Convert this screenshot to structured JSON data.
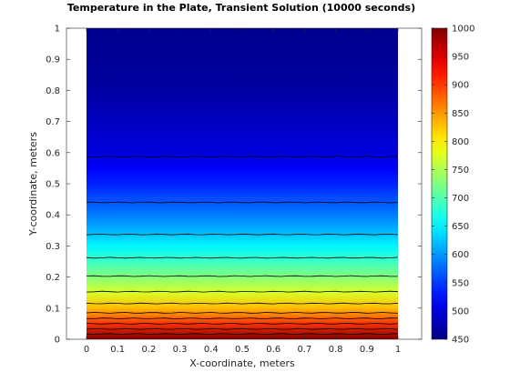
{
  "chart_data": {
    "type": "heatmap",
    "title": "Temperature in the Plate, Transient Solution (10000 seconds)",
    "xlabel": "X-coordinate, meters",
    "ylabel": "Y-coordinate, meters",
    "xlim": [
      0,
      1
    ],
    "ylim": [
      0,
      1
    ],
    "x_ticks": [
      "0",
      "0.1",
      "0.2",
      "0.3",
      "0.4",
      "0.5",
      "0.6",
      "0.7",
      "0.8",
      "0.9",
      "1"
    ],
    "y_ticks": [
      "0",
      "0.1",
      "0.2",
      "0.3",
      "0.4",
      "0.5",
      "0.6",
      "0.7",
      "0.8",
      "0.9",
      "1"
    ],
    "colorbar": {
      "colormap": "jet",
      "range": [
        450,
        1000
      ],
      "ticks": [
        "450",
        "500",
        "550",
        "600",
        "650",
        "700",
        "750",
        "800",
        "850",
        "900",
        "950",
        "1000"
      ]
    },
    "temperature_profile": {
      "y": [
        0.0,
        0.05,
        0.1,
        0.15,
        0.2,
        0.25,
        0.3,
        0.35,
        0.4,
        0.45,
        0.5,
        0.55,
        0.6,
        0.7,
        0.8,
        0.9,
        1.0
      ],
      "value": [
        1000,
        905,
        830,
        772,
        728,
        688,
        652,
        616,
        586,
        561,
        536,
        516,
        500,
        485,
        470,
        462,
        458
      ]
    },
    "contour_lines_y": [
      0.017,
      0.033,
      0.05,
      0.067,
      0.085,
      0.115,
      0.153,
      0.203,
      0.262,
      0.337,
      0.44,
      0.587
    ]
  }
}
